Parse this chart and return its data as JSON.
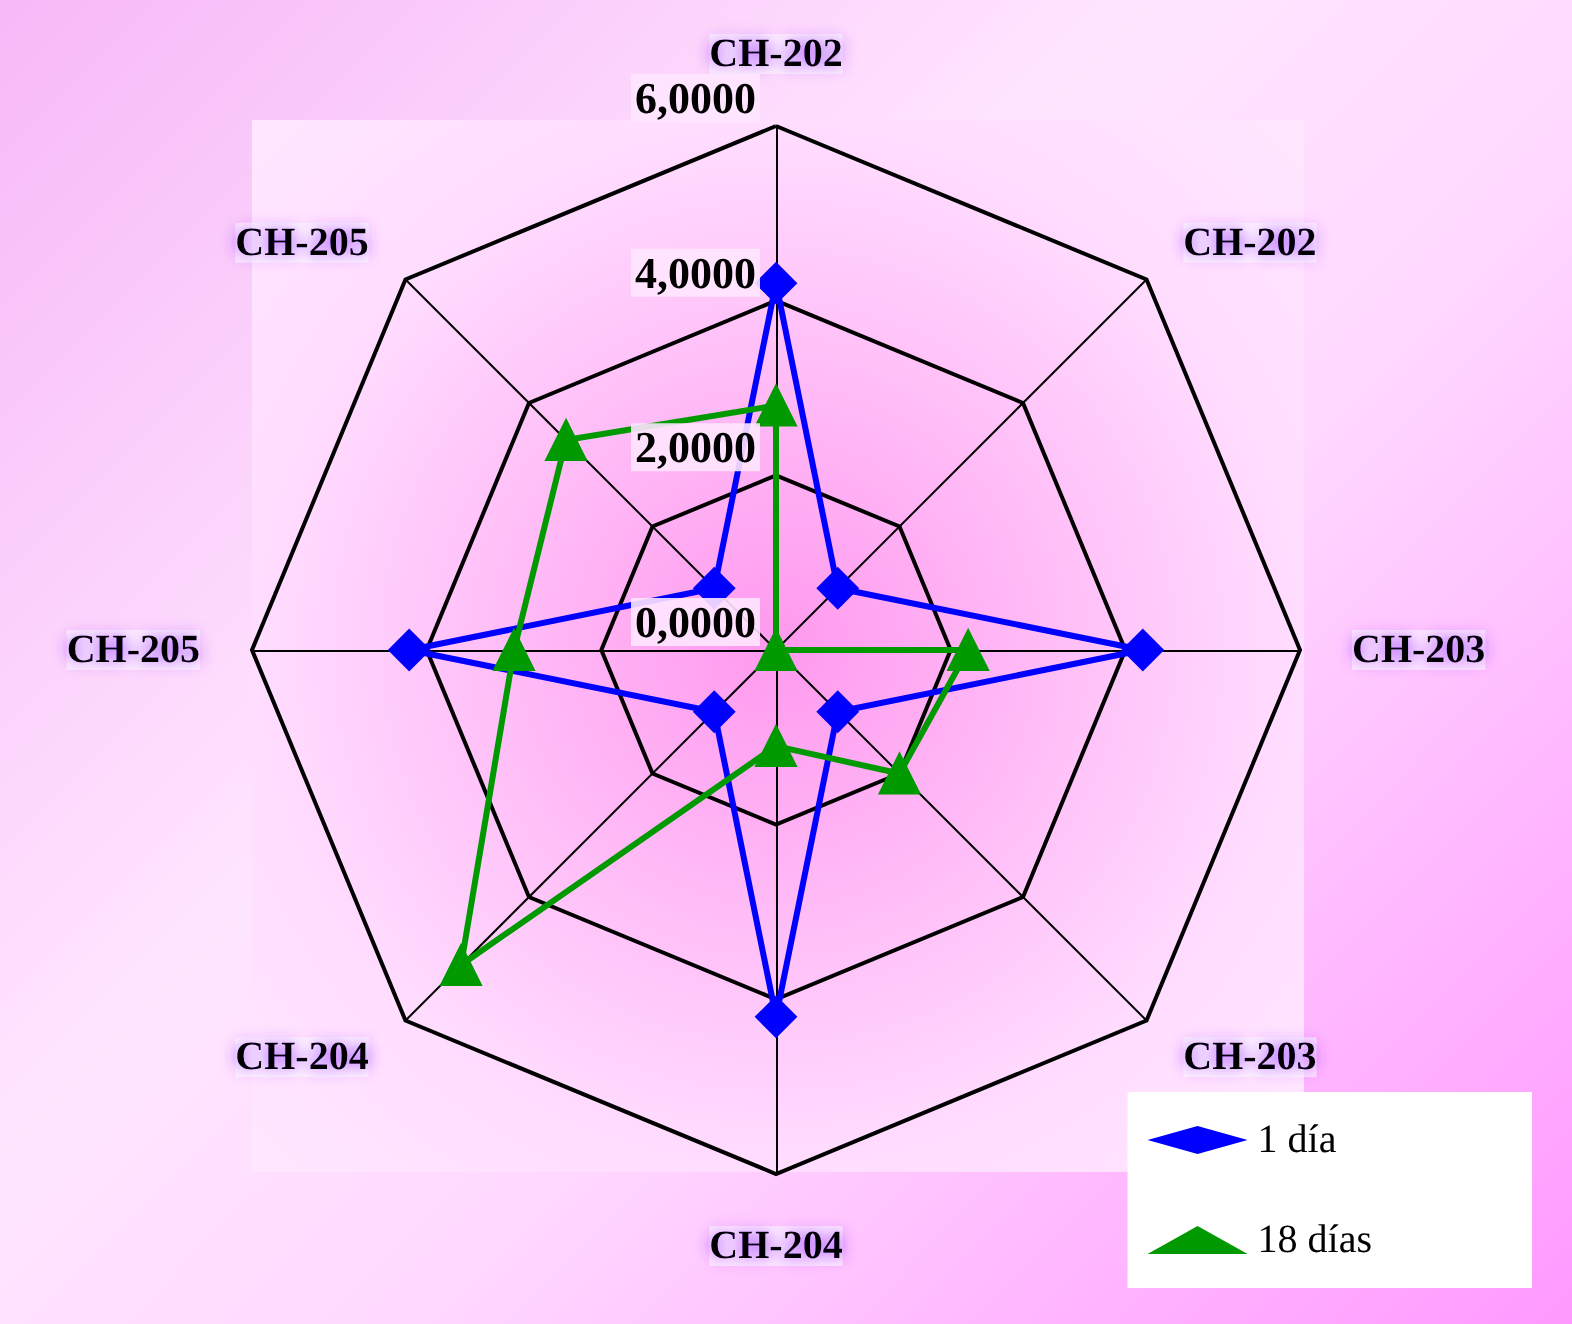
{
  "chart_data": {
    "type": "radar",
    "categories": [
      "CH-202",
      "CH-202",
      "CH-203",
      "CH-203",
      "CH-204",
      "CH-204",
      "CH-205",
      "CH-205"
    ],
    "ylim": [
      0,
      6
    ],
    "yticks": [
      {
        "value": 0,
        "label": "0,0000"
      },
      {
        "value": 2,
        "label": "2,0000"
      },
      {
        "value": 4,
        "label": "4,0000"
      },
      {
        "value": 6,
        "label": "6,0000"
      }
    ],
    "series": [
      {
        "name": "1 día",
        "color": "#0000ff",
        "values": [
          4.2,
          1.0,
          4.2,
          1.0,
          4.2,
          1.0,
          4.2,
          1.0
        ]
      },
      {
        "name": "18 días",
        "color": "#009900",
        "values": [
          2.8,
          0,
          2.2,
          2.0,
          1.1,
          5.1,
          3.0,
          3.4
        ]
      }
    ],
    "marker": [
      "diamond",
      "triangle"
    ],
    "legend": "bottom right",
    "grid": true
  }
}
